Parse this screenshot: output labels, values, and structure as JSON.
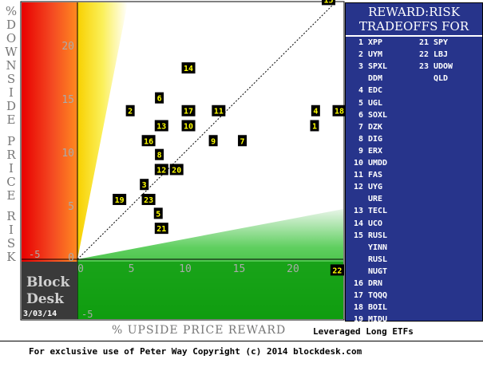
{
  "y_axis_label_letters": [
    "%",
    "D",
    "O",
    "W",
    "N",
    "S",
    "I",
    "D",
    "E",
    "",
    "P",
    "R",
    "I",
    "C",
    "E",
    "",
    "R",
    "I",
    "S",
    "K"
  ],
  "x_axis_label": "% UPSIDE PRICE REWARD",
  "subtitle": "Leveraged Long ETFs",
  "footer": "For exclusive use of Peter Way Copyright (c) 2014 blockdesk.com",
  "brand": {
    "line1": "Block",
    "line2": "Desk",
    "date": "3/03/14"
  },
  "legend": {
    "title_line1": "REWARD:RISK",
    "title_line2": "TRADEOFFS FOR",
    "col1": [
      {
        "num": "1",
        "ticker": "XPP"
      },
      {
        "num": "2",
        "ticker": "UYM"
      },
      {
        "num": "3",
        "ticker": "SPXL"
      },
      {
        "num": "",
        "ticker": "DDM"
      },
      {
        "num": "4",
        "ticker": "EDC"
      },
      {
        "num": "5",
        "ticker": "UGL"
      },
      {
        "num": "6",
        "ticker": "SOXL"
      },
      {
        "num": "7",
        "ticker": "DZK"
      },
      {
        "num": "8",
        "ticker": "DIG"
      },
      {
        "num": "9",
        "ticker": "ERX"
      },
      {
        "num": "10",
        "ticker": "UMDD"
      },
      {
        "num": "11",
        "ticker": "FAS"
      },
      {
        "num": "12",
        "ticker": "UYG"
      },
      {
        "num": "",
        "ticker": "URE"
      },
      {
        "num": "13",
        "ticker": "TECL"
      },
      {
        "num": "14",
        "ticker": "UCO"
      },
      {
        "num": "15",
        "ticker": "RUSL"
      },
      {
        "num": "",
        "ticker": "YINN"
      },
      {
        "num": "",
        "ticker": "RUSL"
      },
      {
        "num": "",
        "ticker": "NUGT"
      },
      {
        "num": "16",
        "ticker": "DRN"
      },
      {
        "num": "17",
        "ticker": "TQQQ"
      },
      {
        "num": "18",
        "ticker": "BOIL"
      },
      {
        "num": "19",
        "ticker": "MIDU"
      },
      {
        "num": "20",
        "ticker": "UWM"
      }
    ],
    "col2": [
      {
        "num": "21",
        "ticker": "SPY"
      },
      {
        "num": "22",
        "ticker": "LBJ"
      },
      {
        "num": "23",
        "ticker": "UDOW"
      },
      {
        "num": "",
        "ticker": "QLD"
      }
    ]
  },
  "colors": {
    "legend_bg": "#27348b",
    "marker_bg": "#000000",
    "marker_text": "#ffff00",
    "axis_tick": "#aaaaaa"
  },
  "chart_data": {
    "type": "scatter",
    "xlabel": "% UPSIDE PRICE REWARD",
    "ylabel": "% DOWNSIDE PRICE RISK",
    "xlim": [
      0,
      25
    ],
    "ylim": [
      0,
      25
    ],
    "x_ticks": [
      "0",
      "5",
      "10",
      "15",
      "20"
    ],
    "y_ticks": [
      "0",
      "5",
      "10",
      "15",
      "20",
      "25"
    ],
    "corner_labels": {
      "bottom_left": "-5",
      "bottom_left_low": "-5"
    },
    "points": [
      {
        "label": "1",
        "x": 22.0,
        "y": 12.5
      },
      {
        "label": "2",
        "x": 4.9,
        "y": 13.9
      },
      {
        "label": "3",
        "x": 6.2,
        "y": 7.0
      },
      {
        "label": "4",
        "x": 22.1,
        "y": 13.9
      },
      {
        "label": "5",
        "x": 7.5,
        "y": 4.3
      },
      {
        "label": "6",
        "x": 7.6,
        "y": 15.1
      },
      {
        "label": "7",
        "x": 15.3,
        "y": 11.1
      },
      {
        "label": "8",
        "x": 7.6,
        "y": 9.8
      },
      {
        "label": "9",
        "x": 12.6,
        "y": 11.1
      },
      {
        "label": "10",
        "x": 10.3,
        "y": 12.5
      },
      {
        "label": "11",
        "x": 13.1,
        "y": 13.9
      },
      {
        "label": "12",
        "x": 7.8,
        "y": 8.4
      },
      {
        "label": "13",
        "x": 7.8,
        "y": 12.5
      },
      {
        "label": "14",
        "x": 10.3,
        "y": 17.9
      },
      {
        "label": "15",
        "x": 23.3,
        "y": 24.3
      },
      {
        "label": "16",
        "x": 6.6,
        "y": 11.1
      },
      {
        "label": "17",
        "x": 10.3,
        "y": 13.9
      },
      {
        "label": "18",
        "x": 24.3,
        "y": 13.9
      },
      {
        "label": "19",
        "x": 3.9,
        "y": 5.6
      },
      {
        "label": "20",
        "x": 9.2,
        "y": 8.4
      },
      {
        "label": "21",
        "x": 7.8,
        "y": 2.9
      },
      {
        "label": "22",
        "x": 24.1,
        "y": -1.0
      },
      {
        "label": "23",
        "x": 6.6,
        "y": 5.6
      }
    ]
  }
}
